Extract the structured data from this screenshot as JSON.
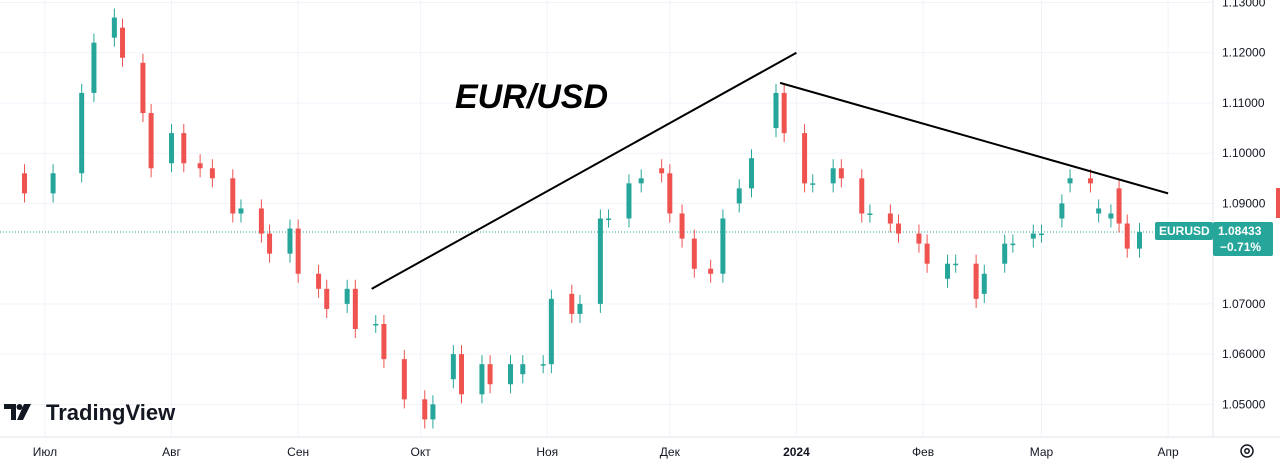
{
  "chart_data": {
    "type": "candlestick",
    "title": "EUR/USD",
    "symbol": "EURUSD",
    "last_price": "1.08433",
    "change_pct": "−0.71%",
    "ylim": [
      1.0435,
      1.1305
    ],
    "y_ticks": [
      "1.13000",
      "1.12000",
      "1.11000",
      "1.10000",
      "1.09000",
      "1.07000",
      "1.06000",
      "1.05000"
    ],
    "x_ticks": [
      "Июл",
      "Авг",
      "Сен",
      "Окт",
      "Ноя",
      "Дек",
      "2024",
      "Фев",
      "Мар",
      "Апр"
    ],
    "last_price_level": 1.0843,
    "colors": {
      "up": "#26a69a",
      "down": "#ef5350",
      "trendline": "#000000",
      "badge": "#26a69a"
    },
    "trendlines": [
      {
        "from": [
          "2023-09-19",
          1.073
        ],
        "to": [
          "2024-01-01",
          1.12
        ]
      },
      {
        "from": [
          "2023-12-28",
          1.114
        ],
        "to": [
          "2024-04-01",
          1.092
        ]
      }
    ],
    "ohlc_points": [
      [
        "2023-06-26",
        1.096,
        1.092
      ],
      [
        "2023-07-03",
        1.092,
        1.096
      ],
      [
        "2023-07-10",
        1.096,
        1.112
      ],
      [
        "2023-07-13",
        1.112,
        1.122
      ],
      [
        "2023-07-18",
        1.123,
        1.127
      ],
      [
        "2023-07-20",
        1.125,
        1.119
      ],
      [
        "2023-07-25",
        1.118,
        1.108
      ],
      [
        "2023-07-27",
        1.108,
        1.097
      ],
      [
        "2023-08-01",
        1.098,
        1.104
      ],
      [
        "2023-08-04",
        1.104,
        1.098
      ],
      [
        "2023-08-08",
        1.098,
        1.097
      ],
      [
        "2023-08-11",
        1.097,
        1.095
      ],
      [
        "2023-08-16",
        1.095,
        1.088
      ],
      [
        "2023-08-18",
        1.088,
        1.089
      ],
      [
        "2023-08-23",
        1.089,
        1.084
      ],
      [
        "2023-08-25",
        1.084,
        1.08
      ],
      [
        "2023-08-30",
        1.08,
        1.085
      ],
      [
        "2023-09-01",
        1.085,
        1.076
      ],
      [
        "2023-09-06",
        1.076,
        1.073
      ],
      [
        "2023-09-08",
        1.073,
        1.069
      ],
      [
        "2023-09-13",
        1.07,
        1.073
      ],
      [
        "2023-09-15",
        1.073,
        1.065
      ],
      [
        "2023-09-20",
        1.066,
        1.066
      ],
      [
        "2023-09-22",
        1.066,
        1.059
      ],
      [
        "2023-09-27",
        1.059,
        1.051
      ],
      [
        "2023-10-02",
        1.051,
        1.047
      ],
      [
        "2023-10-04",
        1.047,
        1.05
      ],
      [
        "2023-10-09",
        1.055,
        1.06
      ],
      [
        "2023-10-11",
        1.06,
        1.052
      ],
      [
        "2023-10-16",
        1.052,
        1.058
      ],
      [
        "2023-10-18",
        1.058,
        1.054
      ],
      [
        "2023-10-23",
        1.054,
        1.058
      ],
      [
        "2023-10-26",
        1.056,
        1.058
      ],
      [
        "2023-10-31",
        1.058,
        1.058
      ],
      [
        "2023-11-02",
        1.058,
        1.071
      ],
      [
        "2023-11-07",
        1.072,
        1.068
      ],
      [
        "2023-11-09",
        1.068,
        1.07
      ],
      [
        "2023-11-14",
        1.07,
        1.087
      ],
      [
        "2023-11-16",
        1.087,
        1.087
      ],
      [
        "2023-11-21",
        1.087,
        1.094
      ],
      [
        "2023-11-24",
        1.094,
        1.095
      ],
      [
        "2023-11-29",
        1.097,
        1.096
      ],
      [
        "2023-12-01",
        1.096,
        1.088
      ],
      [
        "2023-12-04",
        1.088,
        1.083
      ],
      [
        "2023-12-07",
        1.083,
        1.077
      ],
      [
        "2023-12-11",
        1.077,
        1.076
      ],
      [
        "2023-12-14",
        1.076,
        1.087
      ],
      [
        "2023-12-18",
        1.09,
        1.093
      ],
      [
        "2023-12-21",
        1.093,
        1.099
      ],
      [
        "2023-12-27",
        1.105,
        1.112
      ],
      [
        "2023-12-29",
        1.112,
        1.104
      ],
      [
        "2024-01-03",
        1.104,
        1.094
      ],
      [
        "2024-01-05",
        1.094,
        1.094
      ],
      [
        "2024-01-10",
        1.094,
        1.097
      ],
      [
        "2024-01-12",
        1.097,
        1.095
      ],
      [
        "2024-01-17",
        1.095,
        1.088
      ],
      [
        "2024-01-19",
        1.088,
        1.088
      ],
      [
        "2024-01-24",
        1.088,
        1.086
      ],
      [
        "2024-01-26",
        1.086,
        1.084
      ],
      [
        "2024-01-31",
        1.084,
        1.082
      ],
      [
        "2024-02-02",
        1.082,
        1.078
      ],
      [
        "2024-02-07",
        1.075,
        1.078
      ],
      [
        "2024-02-09",
        1.078,
        1.078
      ],
      [
        "2024-02-14",
        1.078,
        1.071
      ],
      [
        "2024-02-16",
        1.072,
        1.076
      ],
      [
        "2024-02-21",
        1.078,
        1.082
      ],
      [
        "2024-02-23",
        1.082,
        1.082
      ],
      [
        "2024-02-28",
        1.083,
        1.084
      ],
      [
        "2024-03-01",
        1.084,
        1.084
      ],
      [
        "2024-03-06",
        1.087,
        1.09
      ],
      [
        "2024-03-08",
        1.094,
        1.095
      ],
      [
        "2024-03-13",
        1.095,
        1.094
      ],
      [
        "2024-03-15",
        1.088,
        1.089
      ],
      [
        "2024-03-18",
        1.087,
        1.088
      ],
      [
        "2024-03-20",
        1.093,
        1.086
      ],
      [
        "2024-03-22",
        1.086,
        1.081
      ],
      [
        "2024-03-25",
        1.081,
        1.0843
      ]
    ]
  },
  "branding": {
    "logo_text": "TradingView"
  },
  "ui": {
    "settings_icon": "gear-icon"
  }
}
